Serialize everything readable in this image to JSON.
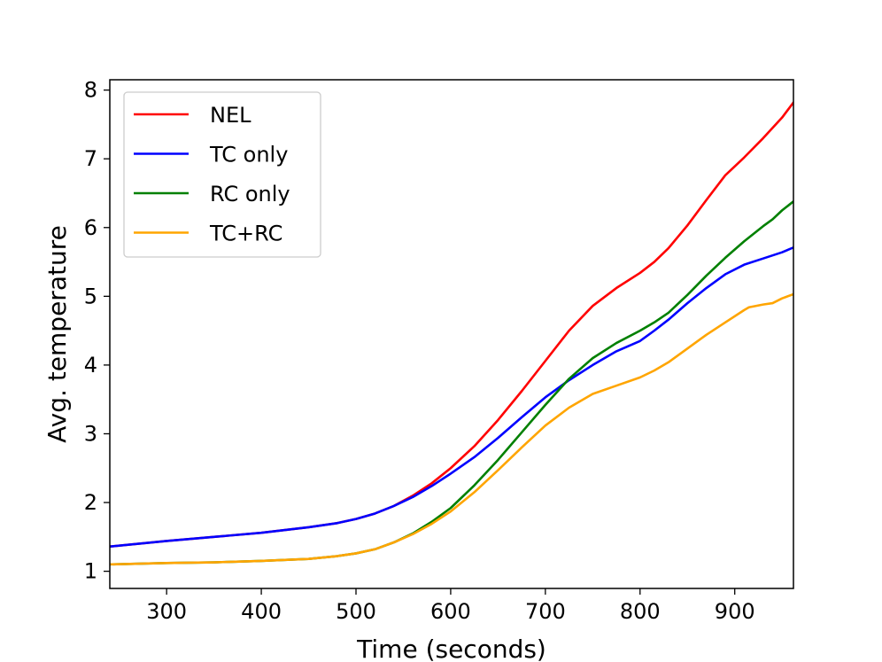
{
  "chart_data": {
    "type": "line",
    "title": "",
    "xlabel": "Time (seconds)",
    "ylabel": "Avg. temperature",
    "xlim": [
      240,
      962
    ],
    "ylim": [
      0.75,
      8.15
    ],
    "xticks": [
      300,
      400,
      500,
      600,
      700,
      800,
      900
    ],
    "yticks": [
      1,
      2,
      3,
      4,
      5,
      6,
      7,
      8
    ],
    "grid": false,
    "legend_position": "top-left",
    "series": [
      {
        "name": "NEL",
        "color": "#ff0000",
        "x": [
          240,
          300,
          350,
          400,
          450,
          480,
          500,
          520,
          540,
          560,
          580,
          600,
          625,
          650,
          675,
          700,
          725,
          750,
          775,
          800,
          815,
          830,
          850,
          870,
          890,
          910,
          930,
          950,
          962
        ],
        "y": [
          1.36,
          1.44,
          1.5,
          1.56,
          1.64,
          1.7,
          1.76,
          1.84,
          1.95,
          2.1,
          2.28,
          2.5,
          2.82,
          3.2,
          3.62,
          4.06,
          4.5,
          4.86,
          5.12,
          5.34,
          5.5,
          5.7,
          6.03,
          6.4,
          6.76,
          7.02,
          7.3,
          7.6,
          7.82
        ]
      },
      {
        "name": "TC only",
        "color": "#0000ff",
        "x": [
          240,
          300,
          350,
          400,
          450,
          480,
          500,
          520,
          540,
          560,
          580,
          600,
          625,
          650,
          675,
          700,
          725,
          750,
          775,
          800,
          815,
          830,
          850,
          870,
          890,
          910,
          930,
          950,
          962
        ],
        "y": [
          1.36,
          1.44,
          1.5,
          1.56,
          1.64,
          1.7,
          1.76,
          1.84,
          1.95,
          2.08,
          2.24,
          2.42,
          2.66,
          2.94,
          3.24,
          3.53,
          3.78,
          4.0,
          4.2,
          4.35,
          4.5,
          4.66,
          4.9,
          5.12,
          5.32,
          5.46,
          5.55,
          5.64,
          5.71
        ]
      },
      {
        "name": "RC only",
        "color": "#008000",
        "x": [
          240,
          300,
          350,
          400,
          450,
          480,
          500,
          520,
          540,
          560,
          580,
          600,
          625,
          650,
          675,
          700,
          725,
          750,
          775,
          800,
          815,
          830,
          850,
          870,
          890,
          910,
          930,
          940,
          950,
          962
        ],
        "y": [
          1.1,
          1.12,
          1.13,
          1.15,
          1.18,
          1.22,
          1.26,
          1.32,
          1.42,
          1.55,
          1.72,
          1.92,
          2.25,
          2.62,
          3.02,
          3.42,
          3.8,
          4.1,
          4.32,
          4.5,
          4.62,
          4.76,
          5.02,
          5.3,
          5.56,
          5.8,
          6.02,
          6.12,
          6.25,
          6.38
        ]
      },
      {
        "name": "TC+RC",
        "color": "#ffa500",
        "x": [
          240,
          300,
          350,
          400,
          450,
          480,
          500,
          520,
          540,
          560,
          580,
          600,
          625,
          650,
          675,
          700,
          725,
          750,
          775,
          800,
          815,
          830,
          850,
          870,
          890,
          910,
          915,
          930,
          940,
          950,
          962
        ],
        "y": [
          1.1,
          1.12,
          1.13,
          1.15,
          1.18,
          1.22,
          1.26,
          1.32,
          1.42,
          1.54,
          1.69,
          1.87,
          2.15,
          2.47,
          2.8,
          3.12,
          3.38,
          3.58,
          3.7,
          3.82,
          3.92,
          4.04,
          4.24,
          4.44,
          4.62,
          4.8,
          4.84,
          4.88,
          4.9,
          4.97,
          5.03
        ]
      }
    ]
  }
}
